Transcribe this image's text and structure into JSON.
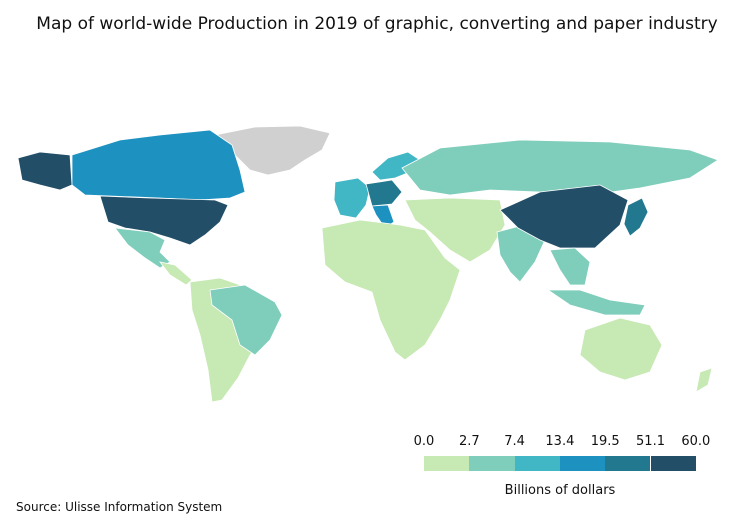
{
  "title": "Map of world-wide Production in 2019 of graphic, converting and paper industry",
  "legend": {
    "label": "Billions of dollars",
    "ticks": [
      "0.0",
      "2.7",
      "7.4",
      "13.4",
      "19.5",
      "51.1",
      "60.0"
    ],
    "colors": [
      "#c7e9b4",
      "#7fcdbb",
      "#41b6c4",
      "#1d91c0",
      "#21788f",
      "#234e68"
    ]
  },
  "no_data_color": "#d0d0d0",
  "source": "Source: Ulisse Information System",
  "regions": [
    {
      "id": "alaska",
      "level": 5
    },
    {
      "id": "canada",
      "level": 3
    },
    {
      "id": "usa",
      "level": 5
    },
    {
      "id": "mexico",
      "level": 1
    },
    {
      "id": "central-america",
      "level": 0
    },
    {
      "id": "south-america",
      "level": 0
    },
    {
      "id": "brazil",
      "level": 1
    },
    {
      "id": "greenland",
      "level": "none"
    },
    {
      "id": "europe-west",
      "level": 2
    },
    {
      "id": "germany",
      "level": 4
    },
    {
      "id": "italy",
      "level": 3
    },
    {
      "id": "scandinavia",
      "level": 2
    },
    {
      "id": "russia",
      "level": 1
    },
    {
      "id": "africa",
      "level": 0
    },
    {
      "id": "middle-east",
      "level": 0
    },
    {
      "id": "india",
      "level": 1
    },
    {
      "id": "china",
      "level": 5
    },
    {
      "id": "japan",
      "level": 4
    },
    {
      "id": "southeast-asia",
      "level": 1
    },
    {
      "id": "indonesia",
      "level": 1
    },
    {
      "id": "australia",
      "level": 0
    },
    {
      "id": "new-zealand",
      "level": 0
    }
  ]
}
